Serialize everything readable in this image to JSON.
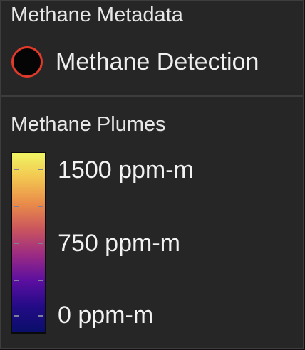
{
  "metadata": {
    "title": "Methane Metadata",
    "detection_label": "Methane Detection",
    "detection_icon": "circle-marker-icon",
    "detection_fill": "#050505",
    "detection_stroke": "#e03a2a"
  },
  "plumes": {
    "title": "Methane Plumes",
    "labels": {
      "max": "1500 ppm-m",
      "mid": "750 ppm-m",
      "min": "0 ppm-m"
    },
    "colormap": [
      "#f0f564",
      "#f3c450",
      "#e98b4a",
      "#c9545e",
      "#9a2a84",
      "#5b0fa0",
      "#230b86",
      "#0a0e6a"
    ]
  }
}
